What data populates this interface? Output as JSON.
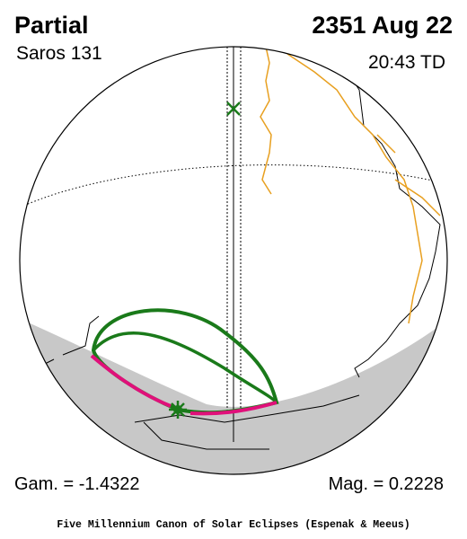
{
  "header": {
    "type": "Partial",
    "saros": "Saros 131",
    "date": "2351 Aug 22",
    "time": "20:43 TD"
  },
  "footer": {
    "gamma": "Gam. = -1.4322",
    "magnitude": "Mag. = 0.2228",
    "credit": "Five Millennium Canon of Solar Eclipses (Espenak & Meeus)"
  }
}
